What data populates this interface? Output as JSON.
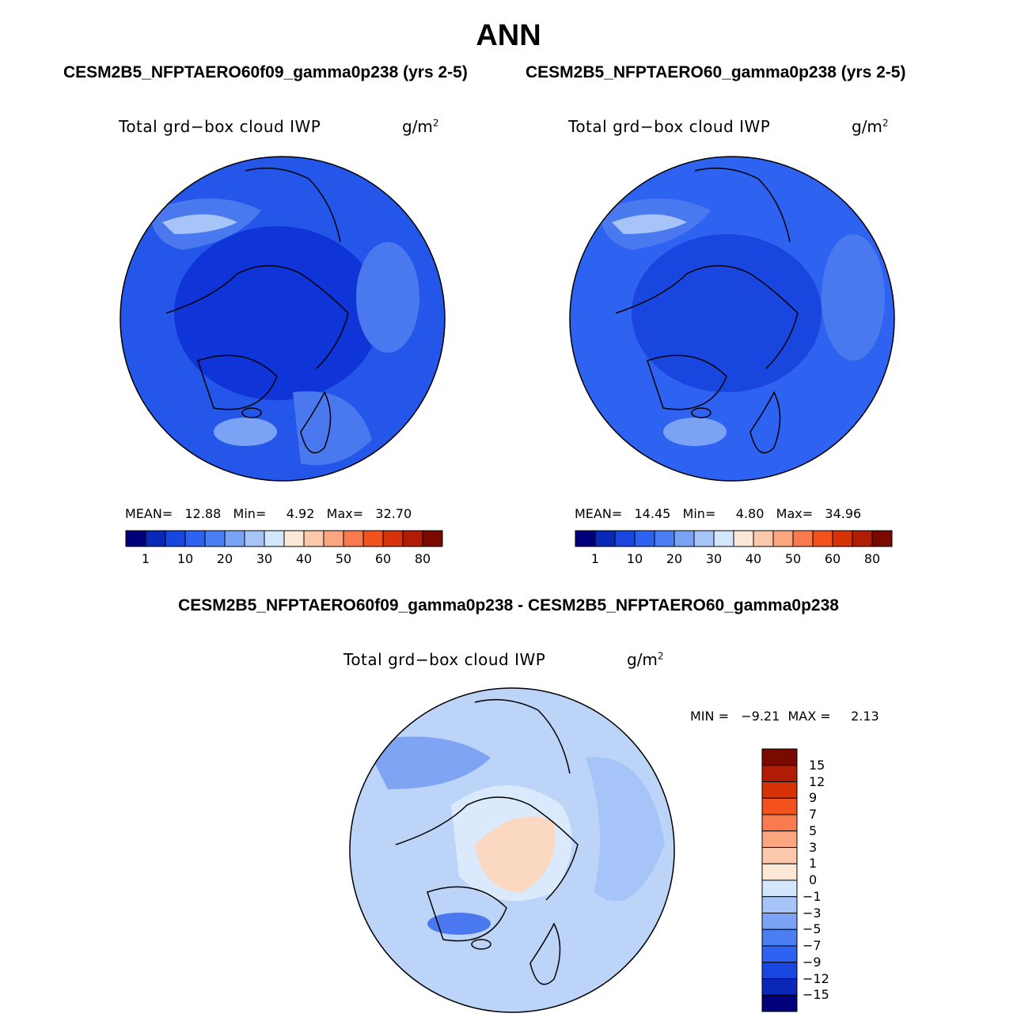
{
  "title": "ANN",
  "panels": [
    {
      "case": "CESM2B5_NFPTAERO60f09_gamma0p238 (yrs 2-5)",
      "variable": "Total grd−box cloud IWP",
      "units_base": "g/m",
      "units_exp": "2",
      "stats": "MEAN=   12.88   Min=     4.92   Max=   32.70"
    },
    {
      "case": "CESM2B5_NFPTAERO60_gamma0p238 (yrs 2-5)",
      "variable": "Total grd−box cloud IWP",
      "units_base": "g/m",
      "units_exp": "2",
      "stats": "MEAN=   14.45   Min=     4.80   Max=   34.96"
    }
  ],
  "difference": {
    "title": "CESM2B5_NFPTAERO60f09_gamma0p238 - CESM2B5_NFPTAERO60_gamma0p238",
    "variable": "Total grd−box cloud IWP",
    "units_base": "g/m",
    "units_exp": "2",
    "stats": "MIN =   −9.21  MAX =     2.13"
  },
  "colorbar_abs": {
    "tick_labels": [
      "1",
      "10",
      "20",
      "30",
      "40",
      "50",
      "60",
      "80"
    ],
    "colors": [
      "#00007a",
      "#0a28b8",
      "#1a46e0",
      "#2e62f0",
      "#4a7ef2",
      "#7aa2f5",
      "#a6c4f8",
      "#d4e6fb",
      "#fce8d6",
      "#fcc8ac",
      "#fba67e",
      "#f97a4e",
      "#f2521e",
      "#d83208",
      "#b01c04",
      "#7a0a00"
    ]
  },
  "colorbar_diff": {
    "tick_labels": [
      "15",
      "12",
      "9",
      "7",
      "5",
      "3",
      "1",
      "0",
      "−1",
      "−3",
      "−5",
      "−7",
      "−9",
      "−12",
      "−15"
    ],
    "colors": [
      "#7a0a00",
      "#b01c04",
      "#d83208",
      "#f2521e",
      "#f97a4e",
      "#fba67e",
      "#fcc8ac",
      "#fce8d6",
      "#d4e6fb",
      "#a6c4f8",
      "#7aa2f5",
      "#4a7ef2",
      "#2e62f0",
      "#1a46e0",
      "#0a28b8",
      "#00007a"
    ]
  },
  "map_colors": {
    "deep": "#0f34d8",
    "mid": "#2456ea",
    "light": "#4a78ee",
    "pale": "#8fb0f5",
    "diff_base": "#bcd4f8",
    "diff_pale": "#dbe9fc",
    "diff_pos": "#fbd8c2",
    "diff_neg": "#7ea4f3"
  }
}
